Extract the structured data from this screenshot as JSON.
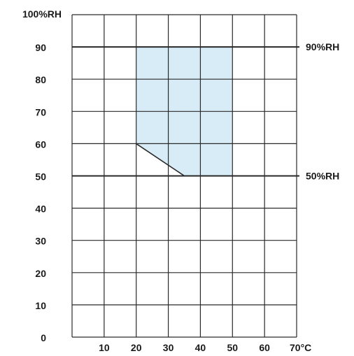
{
  "chart_data": {
    "type": "area",
    "title": "",
    "xlabel": "",
    "ylabel": "",
    "xlim": [
      0,
      70
    ],
    "ylim": [
      0,
      100
    ],
    "x_ticks": [
      10,
      20,
      30,
      40,
      50,
      60,
      70
    ],
    "x_tick_labels": [
      "10",
      "20",
      "30",
      "40",
      "50",
      "60",
      "70°C"
    ],
    "y_ticks": [
      0,
      10,
      20,
      30,
      40,
      50,
      60,
      70,
      80,
      90,
      100
    ],
    "y_tick_labels": [
      "0",
      "10",
      "20",
      "30",
      "40",
      "50",
      "60",
      "70",
      "80",
      "90",
      "100%RH"
    ],
    "grid": true,
    "grid_x_step": 10,
    "grid_y_step": 10,
    "reference_lines": [
      {
        "y": 90,
        "label": "90%RH"
      },
      {
        "y": 50,
        "label": "50%RH"
      }
    ],
    "region": {
      "name": "",
      "fill_color": "#d7ecf7",
      "points": [
        [
          20,
          90
        ],
        [
          50,
          90
        ],
        [
          50,
          50
        ],
        [
          35,
          50
        ],
        [
          20,
          60
        ]
      ]
    },
    "colors": {
      "grid": "#2a2a2a",
      "text": "#1a1a1a",
      "region": "#d7ecf7"
    }
  }
}
